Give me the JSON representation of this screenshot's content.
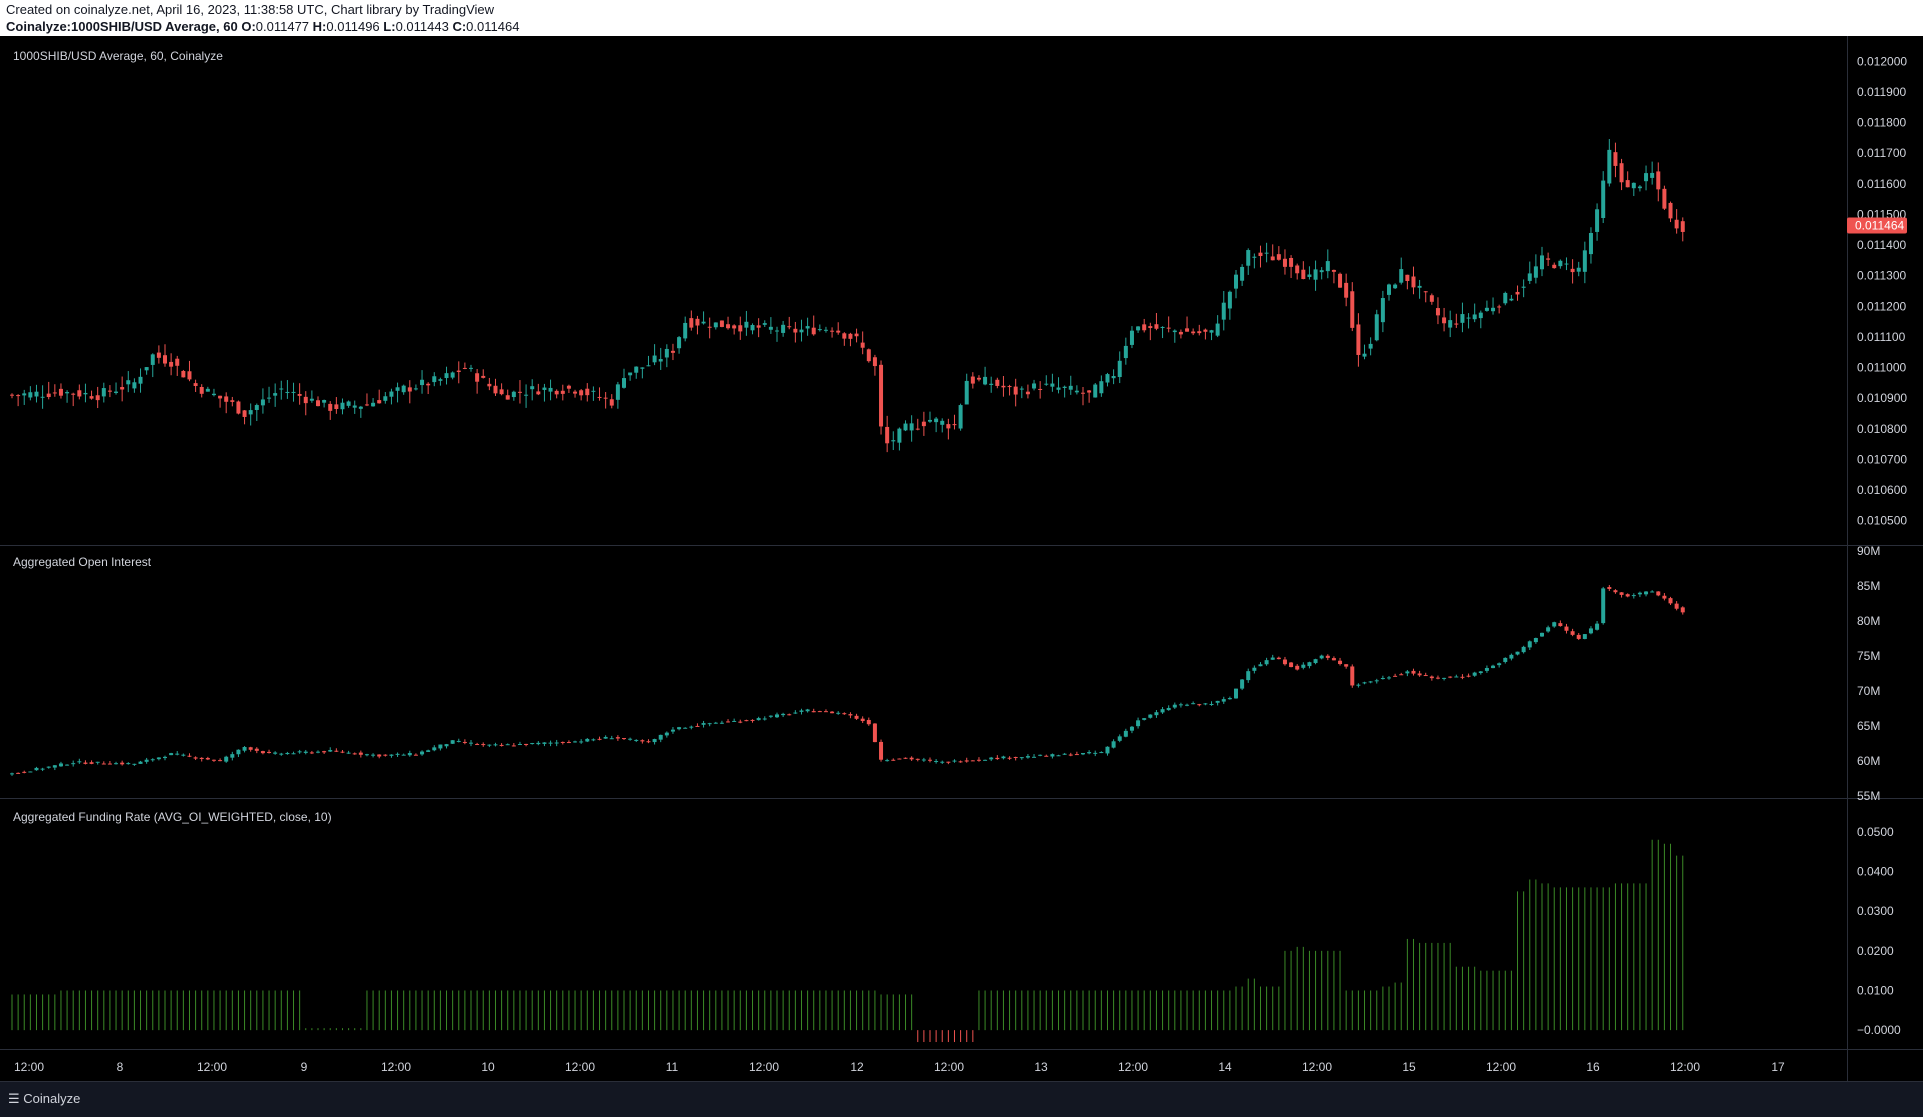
{
  "header": {
    "line1": "Created on coinalyze.net, April 16, 2023, 11:38:58 UTC, Chart library by TradingView",
    "line2_prefix": "Coinalyze:1000SHIB/USD Average, 60",
    "o_label": "O:",
    "o_value": "0.011477",
    "h_label": "H:",
    "h_value": "0.011496",
    "l_label": "L:",
    "l_value": "0.011443",
    "c_label": "C:",
    "c_value": "0.011464"
  },
  "footer": {
    "brand": "Coinalyze"
  },
  "colors": {
    "up": "#26a69a",
    "down": "#ef5350",
    "funding_pos": "#3b8a27",
    "funding_neg": "#ef5350",
    "last_price_bg": "#ef5350"
  },
  "chart_data": [
    {
      "type": "candlestick",
      "title": "1000SHIB/USD Average, 60, Coinalyze",
      "ylim": [
        0.01045,
        0.01205
      ],
      "y_ticks": [
        "0.012000",
        "0.011900",
        "0.011800",
        "0.011700",
        "0.011600",
        "0.011500",
        "0.011400",
        "0.011300",
        "0.011200",
        "0.011100",
        "0.011000",
        "0.010900",
        "0.010800",
        "0.010700",
        "0.010600",
        "0.010500"
      ],
      "last_price": "0.011464",
      "close_anchors": [
        [
          0,
          0.01091
        ],
        [
          8,
          0.01092
        ],
        [
          14,
          0.01091
        ],
        [
          20,
          0.01095
        ],
        [
          23,
          0.01104
        ],
        [
          26,
          0.01102
        ],
        [
          30,
          0.01094
        ],
        [
          36,
          0.01088
        ],
        [
          38,
          0.01085
        ],
        [
          44,
          0.01093
        ],
        [
          48,
          0.0109
        ],
        [
          52,
          0.01087
        ],
        [
          58,
          0.01088
        ],
        [
          64,
          0.01093
        ],
        [
          70,
          0.01096
        ],
        [
          74,
          0.011
        ],
        [
          80,
          0.01091
        ],
        [
          86,
          0.01093
        ],
        [
          92,
          0.01093
        ],
        [
          98,
          0.01089
        ],
        [
          100,
          0.01098
        ],
        [
          104,
          0.01101
        ],
        [
          108,
          0.01106
        ],
        [
          110,
          0.01115
        ],
        [
          116,
          0.01114
        ],
        [
          122,
          0.01113
        ],
        [
          128,
          0.01112
        ],
        [
          134,
          0.01113
        ],
        [
          138,
          0.01109
        ],
        [
          141,
          0.011
        ],
        [
          142,
          0.0108
        ],
        [
          143,
          0.01075
        ],
        [
          146,
          0.0108
        ],
        [
          150,
          0.01083
        ],
        [
          154,
          0.01081
        ],
        [
          156,
          0.01096
        ],
        [
          160,
          0.01095
        ],
        [
          164,
          0.01092
        ],
        [
          168,
          0.01094
        ],
        [
          172,
          0.01093
        ],
        [
          176,
          0.01091
        ],
        [
          180,
          0.01098
        ],
        [
          183,
          0.01113
        ],
        [
          186,
          0.01113
        ],
        [
          190,
          0.01112
        ],
        [
          196,
          0.01111
        ],
        [
          199,
          0.01125
        ],
        [
          202,
          0.01137
        ],
        [
          206,
          0.01136
        ],
        [
          209,
          0.01134
        ],
        [
          212,
          0.01129
        ],
        [
          215,
          0.01133
        ],
        [
          218,
          0.01124
        ],
        [
          220,
          0.01103
        ],
        [
          222,
          0.01109
        ],
        [
          224,
          0.01123
        ],
        [
          227,
          0.01131
        ],
        [
          231,
          0.01123
        ],
        [
          234,
          0.01114
        ],
        [
          240,
          0.01118
        ],
        [
          246,
          0.01125
        ],
        [
          250,
          0.01135
        ],
        [
          256,
          0.01132
        ],
        [
          259,
          0.0115
        ],
        [
          261,
          0.0117
        ],
        [
          264,
          0.01158
        ],
        [
          268,
          0.01163
        ],
        [
          271,
          0.01148
        ],
        [
          273,
          0.01146
        ]
      ],
      "n_candles": 274
    },
    {
      "type": "candlestick",
      "title": "Aggregated Open Interest",
      "ylim": [
        55,
        90
      ],
      "y_ticks": [
        "90M",
        "85M",
        "80M",
        "75M",
        "70M",
        "65M",
        "60M",
        "55M"
      ],
      "close_anchors": [
        [
          0,
          58.2
        ],
        [
          10,
          59.8
        ],
        [
          20,
          59.6
        ],
        [
          26,
          61
        ],
        [
          34,
          60
        ],
        [
          38,
          62
        ],
        [
          42,
          61
        ],
        [
          52,
          61.4
        ],
        [
          60,
          60.8
        ],
        [
          66,
          61
        ],
        [
          72,
          62.8
        ],
        [
          78,
          62.2
        ],
        [
          84,
          62.4
        ],
        [
          92,
          62.8
        ],
        [
          98,
          63.4
        ],
        [
          104,
          62.6
        ],
        [
          108,
          64.6
        ],
        [
          114,
          65.4
        ],
        [
          120,
          65.8
        ],
        [
          130,
          67.2
        ],
        [
          136,
          66.8
        ],
        [
          140,
          65.4
        ],
        [
          142,
          60.2
        ],
        [
          146,
          60.4
        ],
        [
          152,
          59.8
        ],
        [
          160,
          60.4
        ],
        [
          170,
          60.8
        ],
        [
          178,
          61.2
        ],
        [
          180,
          62.8
        ],
        [
          184,
          65.8
        ],
        [
          190,
          68
        ],
        [
          196,
          68.2
        ],
        [
          199,
          69
        ],
        [
          202,
          73
        ],
        [
          206,
          74.8
        ],
        [
          210,
          73.2
        ],
        [
          214,
          75
        ],
        [
          218,
          73.6
        ],
        [
          219,
          70.8
        ],
        [
          224,
          71.8
        ],
        [
          228,
          72.8
        ],
        [
          232,
          71.8
        ],
        [
          238,
          72.2
        ],
        [
          242,
          73.6
        ],
        [
          246,
          75.6
        ],
        [
          252,
          79.8
        ],
        [
          256,
          77.4
        ],
        [
          259,
          79.6
        ],
        [
          260,
          84.8
        ],
        [
          264,
          83.6
        ],
        [
          268,
          84.2
        ],
        [
          270,
          83.2
        ],
        [
          273,
          81.2
        ]
      ]
    },
    {
      "type": "bar",
      "title": "Aggregated Funding Rate (AVG_OI_WEIGHTED, close, 10)",
      "ylim": [
        -0.004,
        0.054
      ],
      "y_ticks": [
        "0.0500",
        "0.0400",
        "0.0300",
        "0.0200",
        "0.0100",
        "−0.0000"
      ],
      "value_steps": [
        [
          0,
          0.009
        ],
        [
          8,
          0.01
        ],
        [
          48,
          0.0005
        ],
        [
          58,
          0.01
        ],
        [
          142,
          0.009
        ],
        [
          148,
          -0.003
        ],
        [
          158,
          0.01
        ],
        [
          200,
          0.011
        ],
        [
          202,
          0.013
        ],
        [
          204,
          0.011
        ],
        [
          208,
          0.02
        ],
        [
          210,
          0.021
        ],
        [
          212,
          0.02
        ],
        [
          218,
          0.01
        ],
        [
          224,
          0.011
        ],
        [
          226,
          0.012
        ],
        [
          228,
          0.023
        ],
        [
          230,
          0.022
        ],
        [
          236,
          0.016
        ],
        [
          240,
          0.015
        ],
        [
          246,
          0.035
        ],
        [
          248,
          0.038
        ],
        [
          250,
          0.037
        ],
        [
          252,
          0.036
        ],
        [
          262,
          0.037
        ],
        [
          268,
          0.048
        ],
        [
          270,
          0.047
        ],
        [
          272,
          0.044
        ]
      ]
    }
  ],
  "x_axis": {
    "labels": [
      "12:00",
      "8",
      "12:00",
      "9",
      "12:00",
      "10",
      "12:00",
      "11",
      "12:00",
      "12",
      "12:00",
      "13",
      "12:00",
      "14",
      "12:00",
      "15",
      "12:00",
      "16",
      "12:00",
      "17"
    ]
  }
}
